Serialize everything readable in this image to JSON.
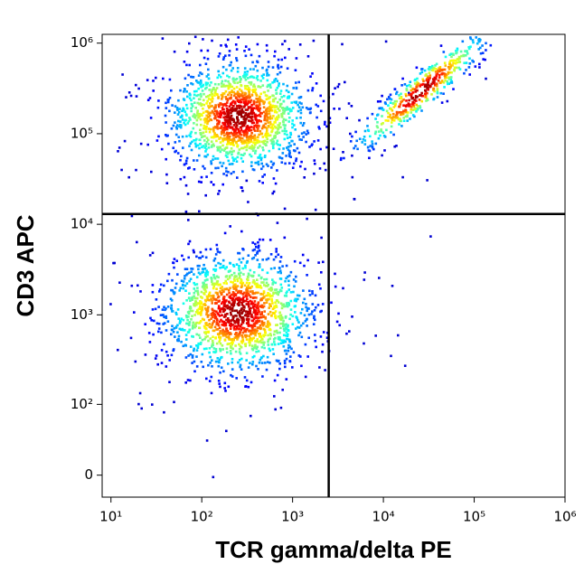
{
  "chart_data": {
    "type": "density",
    "x_label": "TCR gamma/delta PE",
    "y_label": "CD3 APC",
    "xscale": "log",
    "yscale": "biexponential",
    "xlim": [
      8,
      1000000
    ],
    "ylim": [
      -20,
      1250000
    ],
    "xticks": [
      {
        "value": 10,
        "label": "10¹"
      },
      {
        "value": 100,
        "label": "10²"
      },
      {
        "value": 1000,
        "label": "10³"
      },
      {
        "value": 10000,
        "label": "10⁴"
      },
      {
        "value": 100000,
        "label": "10⁵"
      },
      {
        "value": 1000000,
        "label": "10⁶"
      }
    ],
    "yticks": [
      0,
      {
        "value": 100,
        "label": "10²"
      },
      {
        "value": 1000,
        "label": "10³"
      },
      {
        "value": 10000,
        "label": "10⁴"
      },
      {
        "value": 100000,
        "label": "10⁵"
      },
      {
        "value": 1000000,
        "label": "10⁶"
      }
    ],
    "gates": {
      "x": 2500,
      "y": 13000
    },
    "populations": [
      {
        "x": 250,
        "y": 160000
      },
      {
        "x": 240,
        "y": 1100
      },
      {
        "x": 25000,
        "y": 300000
      }
    ]
  }
}
